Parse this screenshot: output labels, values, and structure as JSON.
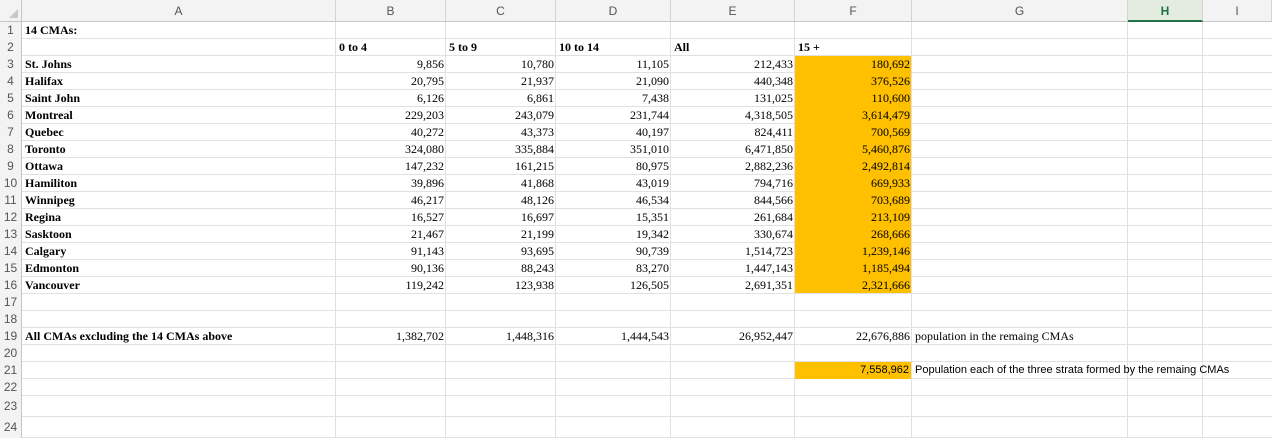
{
  "columns": [
    "A",
    "B",
    "C",
    "D",
    "E",
    "F",
    "G",
    "H",
    "I"
  ],
  "active_column": "H",
  "row_numbers": [
    "1",
    "2",
    "3",
    "4",
    "5",
    "6",
    "7",
    "8",
    "9",
    "10",
    "11",
    "12",
    "13",
    "14",
    "15",
    "16",
    "17",
    "18",
    "19",
    "20",
    "21",
    "22",
    "23",
    "24"
  ],
  "title": "14 CMAs:",
  "headers": [
    "0 to 4",
    "5 to 9",
    "10 to 14",
    "All",
    "15 +"
  ],
  "rows": [
    {
      "name": "St. Johns",
      "values": [
        "9,856",
        "10,780",
        "11,105",
        "212,433",
        "180,692"
      ]
    },
    {
      "name": "Halifax",
      "values": [
        "20,795",
        "21,937",
        "21,090",
        "440,348",
        "376,526"
      ]
    },
    {
      "name": "Saint John",
      "values": [
        "6,126",
        "6,861",
        "7,438",
        "131,025",
        "110,600"
      ]
    },
    {
      "name": "Montreal",
      "values": [
        "229,203",
        "243,079",
        "231,744",
        "4,318,505",
        "3,614,479"
      ]
    },
    {
      "name": "Quebec",
      "values": [
        "40,272",
        "43,373",
        "40,197",
        "824,411",
        "700,569"
      ]
    },
    {
      "name": "Toronto",
      "values": [
        "324,080",
        "335,884",
        "351,010",
        "6,471,850",
        "5,460,876"
      ]
    },
    {
      "name": "Ottawa",
      "values": [
        "147,232",
        "161,215",
        "80,975",
        "2,882,236",
        "2,492,814"
      ]
    },
    {
      "name": "Hamiliton",
      "values": [
        "39,896",
        "41,868",
        "43,019",
        "794,716",
        "669,933"
      ]
    },
    {
      "name": "Winnipeg",
      "values": [
        "46,217",
        "48,126",
        "46,534",
        "844,566",
        "703,689"
      ]
    },
    {
      "name": "Regina",
      "values": [
        "16,527",
        "16,697",
        "15,351",
        "261,684",
        "213,109"
      ]
    },
    {
      "name": "Sasktoon",
      "values": [
        "21,467",
        "21,199",
        "19,342",
        "330,674",
        "268,666"
      ]
    },
    {
      "name": "Calgary",
      "values": [
        "91,143",
        "93,695",
        "90,739",
        "1,514,723",
        "1,239,146"
      ]
    },
    {
      "name": "Edmonton",
      "values": [
        "90,136",
        "88,243",
        "83,270",
        "1,447,143",
        "1,185,494"
      ]
    },
    {
      "name": "Vancouver",
      "values": [
        "119,242",
        "123,938",
        "126,505",
        "2,691,351",
        "2,321,666"
      ]
    }
  ],
  "summary": {
    "label": "All CMAs excluding the 14 CMAs above",
    "values": [
      "1,382,702",
      "1,448,316",
      "1,444,543",
      "26,952,447",
      "22,676,886"
    ],
    "note": "population in the remaing CMAs"
  },
  "strata": {
    "value": "7,558,962",
    "note": "Population each of the three strata formed by the remaing CMAs"
  },
  "colors": {
    "highlight": "#ffc000",
    "active_header": "#217346"
  }
}
